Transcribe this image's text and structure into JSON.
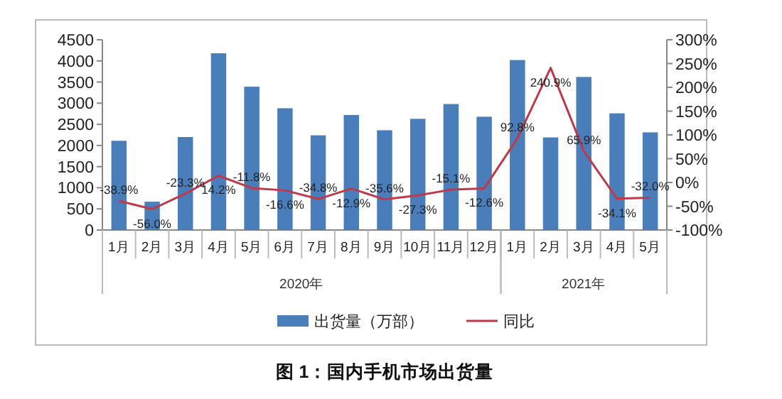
{
  "chart_data": {
    "type": "bar",
    "title": "图 1：国内手机市场出货量",
    "categories": [
      "1月",
      "2月",
      "3月",
      "4月",
      "5月",
      "6月",
      "7月",
      "8月",
      "9月",
      "10月",
      "11月",
      "12月",
      "1月",
      "2月",
      "3月",
      "4月",
      "5月"
    ],
    "series": [
      {
        "name": "出货量（万部）",
        "color": "#4a7ebb",
        "values": [
          2110,
          670,
          2200,
          4180,
          3390,
          2880,
          2240,
          2720,
          2360,
          2630,
          2980,
          2680,
          4020,
          2190,
          3620,
          2760,
          2310
        ]
      },
      {
        "name": "同比",
        "type": "line",
        "axis": "y2",
        "color": "#c0394b",
        "values": [
          -38.9,
          -56.0,
          -23.3,
          14.2,
          -11.8,
          -16.6,
          -34.8,
          -12.9,
          -35.6,
          -27.3,
          -15.1,
          -12.6,
          92.8,
          240.9,
          65.9,
          -34.1,
          -32.0
        ],
        "value_labels": [
          "-38.9%",
          "-56.0%",
          "-23.3%",
          "14.2%",
          "-11.8%",
          "-16.6%",
          "-34.8%",
          "-12.9%",
          "-35.6%",
          "-27.3%",
          "-15.1%",
          "-12.6%",
          "92.8%",
          "240.9%",
          "65.9%",
          "-34.1%",
          "-32.0%"
        ]
      }
    ],
    "ylim": [
      0,
      4500
    ],
    "yticks": [
      0,
      500,
      1000,
      1500,
      2000,
      2500,
      3000,
      3500,
      4000,
      4500
    ],
    "y2lim": [
      -100,
      300
    ],
    "y2ticks": [
      {
        "value": -100,
        "label": "-100%"
      },
      {
        "value": -50,
        "label": "-50%"
      },
      {
        "value": 0,
        "label": "0%"
      },
      {
        "value": 50,
        "label": "50%"
      },
      {
        "value": 100,
        "label": "100%"
      },
      {
        "value": 150,
        "label": "150%"
      },
      {
        "value": 200,
        "label": "200%"
      },
      {
        "value": 250,
        "label": "250%"
      },
      {
        "value": 300,
        "label": "300%"
      }
    ],
    "annotations": [
      "2020年",
      "2021年"
    ],
    "legend": "bottom"
  }
}
